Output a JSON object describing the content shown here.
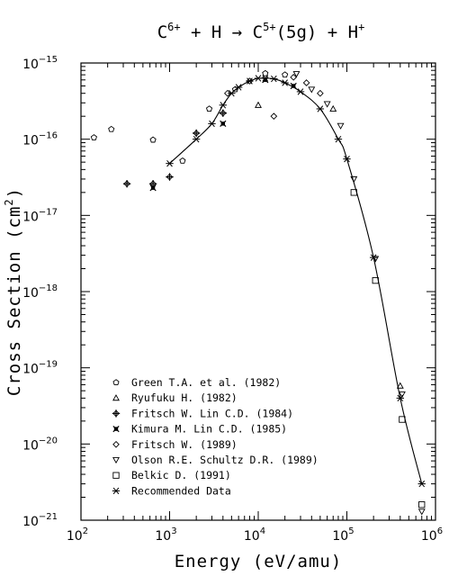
{
  "chart_data": {
    "type": "scatter",
    "title": {
      "parts": [
        {
          "text": "C",
          "sup": "6+"
        },
        {
          "text": " + H → C",
          "sup": "5+"
        },
        {
          "text": "(5g) + H",
          "sup": "+"
        }
      ]
    },
    "xlabel": "Energy (eV/amu)",
    "ylabel": {
      "text": "Cross Section (cm",
      "sup": "2",
      "close": ")"
    },
    "x_scale": "log",
    "y_scale": "log",
    "xlim": [
      100,
      1000000
    ],
    "ylim": [
      1e-21,
      1e-15
    ],
    "x_ticks": [
      {
        "value": 100,
        "base": "10",
        "exp": "2"
      },
      {
        "value": 1000,
        "base": "10",
        "exp": "3"
      },
      {
        "value": 10000,
        "base": "10",
        "exp": "4"
      },
      {
        "value": 100000,
        "base": "10",
        "exp": "5"
      },
      {
        "value": 1000000,
        "base": "10",
        "exp": "6"
      }
    ],
    "y_ticks": [
      {
        "value": 1e-15,
        "base": "10",
        "exp": "−15"
      },
      {
        "value": 1e-16,
        "base": "10",
        "exp": "−16"
      },
      {
        "value": 1e-17,
        "base": "10",
        "exp": "−17"
      },
      {
        "value": 1e-18,
        "base": "10",
        "exp": "−18"
      },
      {
        "value": 1e-19,
        "base": "10",
        "exp": "−19"
      },
      {
        "value": 1e-20,
        "base": "10",
        "exp": "−20"
      },
      {
        "value": 1e-21,
        "base": "10",
        "exp": "−21"
      }
    ],
    "grid": false,
    "legend_position": "lower-left",
    "series": [
      {
        "name": "Green T.A. et al. (1982)",
        "marker": "pentagon",
        "points": [
          [
            140,
            1.05e-16
          ],
          [
            220,
            1.35e-16
          ],
          [
            650,
            9.8e-17
          ],
          [
            1400,
            5.2e-17
          ],
          [
            2800,
            2.5e-16
          ],
          [
            5500,
            4.5e-16
          ],
          [
            12000,
            7.3e-16
          ],
          [
            20000,
            7e-16
          ]
        ]
      },
      {
        "name": "Ryufuku H. (1982)",
        "marker": "triangle",
        "points": [
          [
            10000,
            2.8e-16
          ],
          [
            70000,
            2.5e-16
          ],
          [
            400000,
            5.8e-20
          ]
        ]
      },
      {
        "name": "Fritsch W. Lin C.D. (1984)",
        "marker": "diamond-cross",
        "points": [
          [
            330,
            2.6e-17
          ],
          [
            650,
            2.6e-17
          ],
          [
            1000,
            3.2e-17
          ],
          [
            2000,
            1.2e-16
          ],
          [
            4000,
            2.2e-16
          ]
        ]
      },
      {
        "name": "Kimura M. Lin C.D. (1985)",
        "marker": "x-filled",
        "points": [
          [
            650,
            2.3e-17
          ],
          [
            4000,
            1.6e-16
          ],
          [
            12000,
            6e-16
          ],
          [
            25000,
            5e-16
          ]
        ]
      },
      {
        "name": "Fritsch W. (1989)",
        "marker": "diamond",
        "points": [
          [
            4500,
            4e-16
          ],
          [
            8000,
            5.8e-16
          ],
          [
            15000,
            2e-16
          ],
          [
            25000,
            6.5e-16
          ],
          [
            35000,
            5.5e-16
          ],
          [
            50000,
            4e-16
          ]
        ]
      },
      {
        "name": "Olson R.E. Schultz D.R. (1989)",
        "marker": "triangle-down",
        "points": [
          [
            27000,
            7.2e-16
          ],
          [
            40000,
            4.5e-16
          ],
          [
            60000,
            2.9e-16
          ],
          [
            85000,
            1.5e-16
          ],
          [
            120000,
            3e-17
          ],
          [
            210000,
            2.7e-18
          ],
          [
            420000,
            4.5e-20
          ],
          [
            700000,
            1.3e-21
          ]
        ]
      },
      {
        "name": "Belkic D. (1991)",
        "marker": "square",
        "points": [
          [
            120000,
            2e-17
          ],
          [
            210000,
            1.4e-18
          ],
          [
            420000,
            2.1e-20
          ],
          [
            700000,
            1.6e-21
          ]
        ]
      },
      {
        "name": "Recommended Data",
        "marker": "asterisk",
        "line": true,
        "points": [
          [
            1000,
            4.8e-17
          ],
          [
            2000,
            1e-16
          ],
          [
            3000,
            1.6e-16
          ],
          [
            4000,
            2.8e-16
          ],
          [
            5000,
            4e-16
          ],
          [
            6000,
            4.8e-16
          ],
          [
            8000,
            5.8e-16
          ],
          [
            10000,
            6.3e-16
          ],
          [
            12000,
            6.3e-16
          ],
          [
            15000,
            6.2e-16
          ],
          [
            20000,
            5.5e-16
          ],
          [
            30000,
            4.2e-16
          ],
          [
            50000,
            2.5e-16
          ],
          [
            80000,
            1e-16
          ],
          [
            100000,
            5.5e-17
          ],
          [
            200000,
            2.8e-18
          ],
          [
            400000,
            4e-20
          ],
          [
            700000,
            3e-21
          ]
        ]
      }
    ]
  }
}
